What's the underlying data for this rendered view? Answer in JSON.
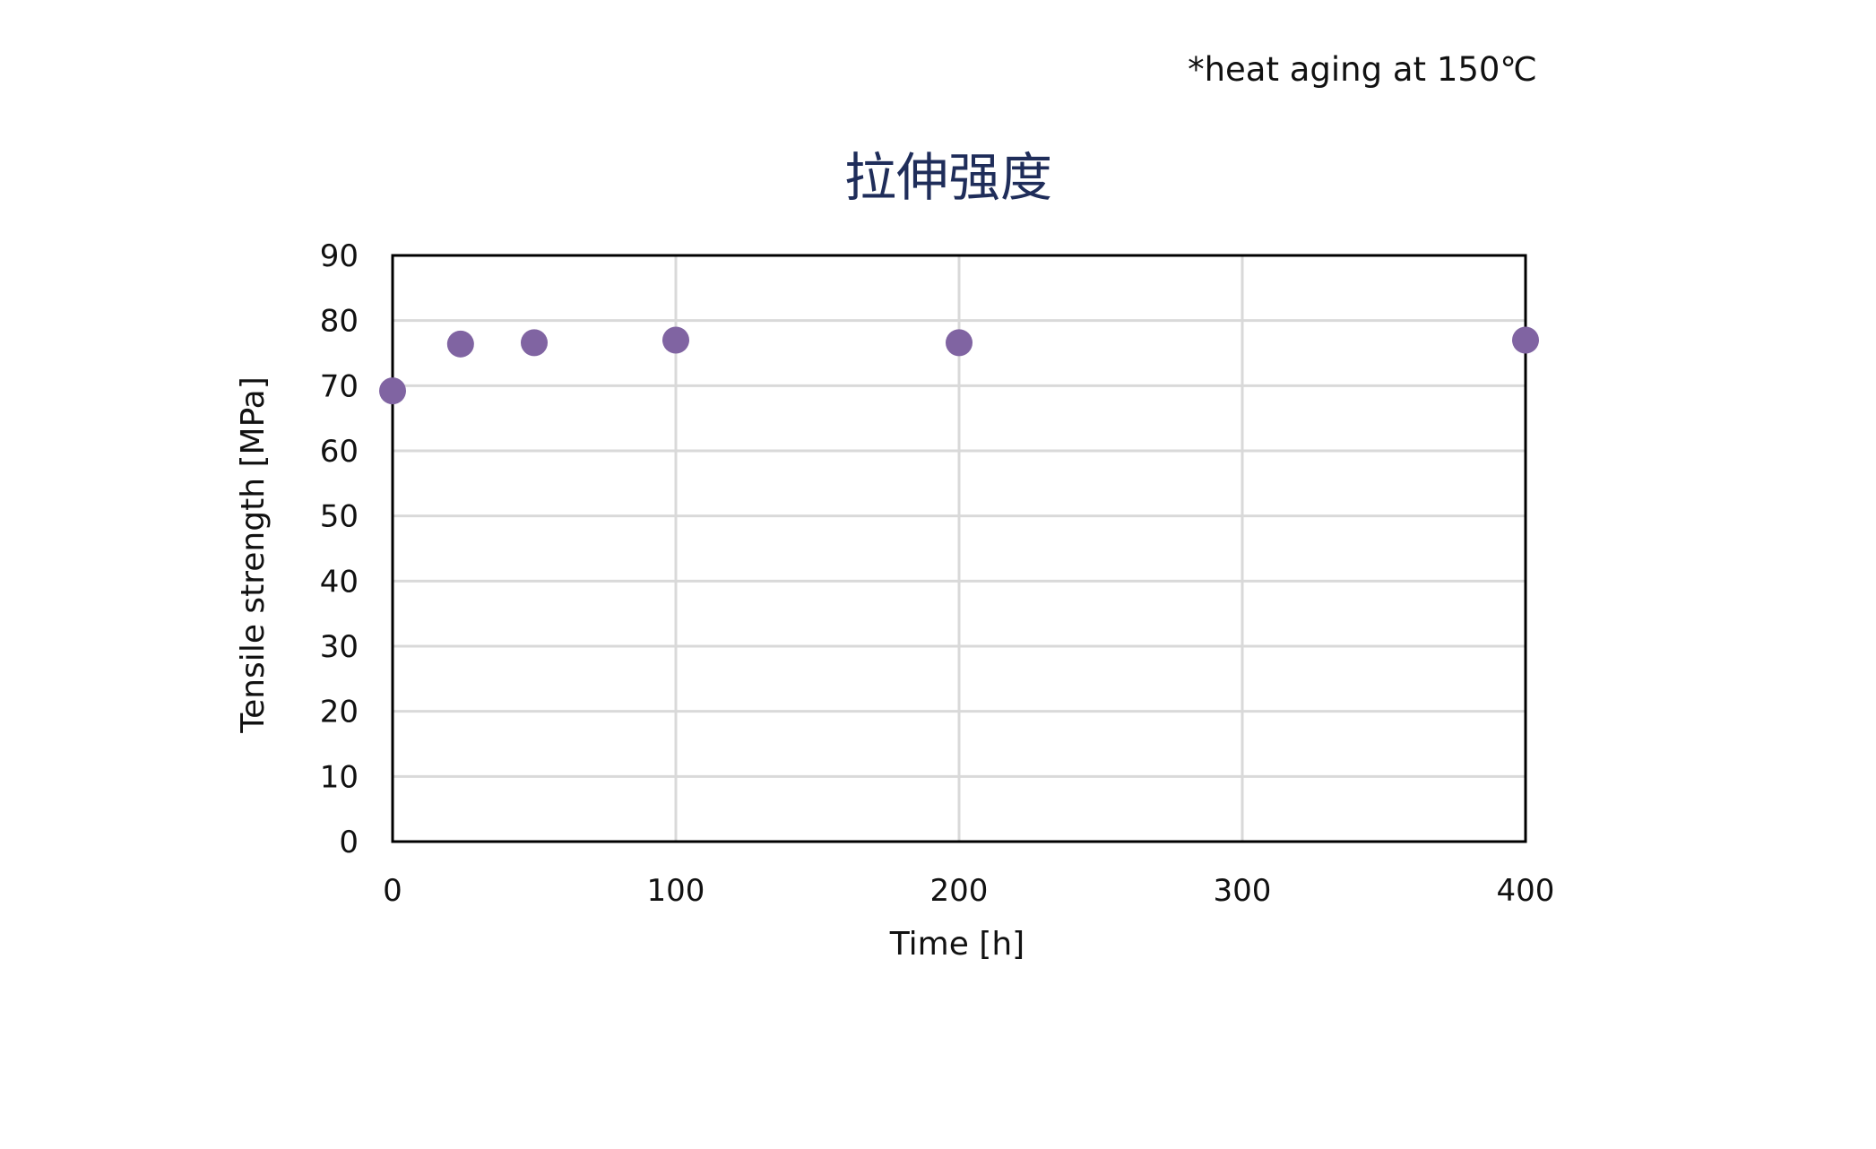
{
  "chart_data": {
    "type": "scatter",
    "title": "拉伸强度",
    "annotation": "*heat aging at 150℃",
    "xlabel": "Time [h]",
    "ylabel": "Tensile strength [MPa]",
    "xlim": [
      0,
      400
    ],
    "ylim": [
      0,
      90
    ],
    "xticks": [
      "0",
      "100",
      "200",
      "300",
      "400"
    ],
    "yticks": [
      "0",
      "10",
      "20",
      "30",
      "40",
      "50",
      "60",
      "70",
      "80",
      "90"
    ],
    "grid": true,
    "legend": "none",
    "points": [
      {
        "x": 0,
        "y": 69.2
      },
      {
        "x": 24,
        "y": 76.4
      },
      {
        "x": 50,
        "y": 76.6
      },
      {
        "x": 100,
        "y": 77.0
      },
      {
        "x": 200,
        "y": 76.6
      },
      {
        "x": 400,
        "y": 77.0
      }
    ],
    "colors": {
      "point": "#8064a2",
      "grid": "#d9d9d9",
      "axis": "#000000",
      "title": "#1f2d5a"
    }
  }
}
